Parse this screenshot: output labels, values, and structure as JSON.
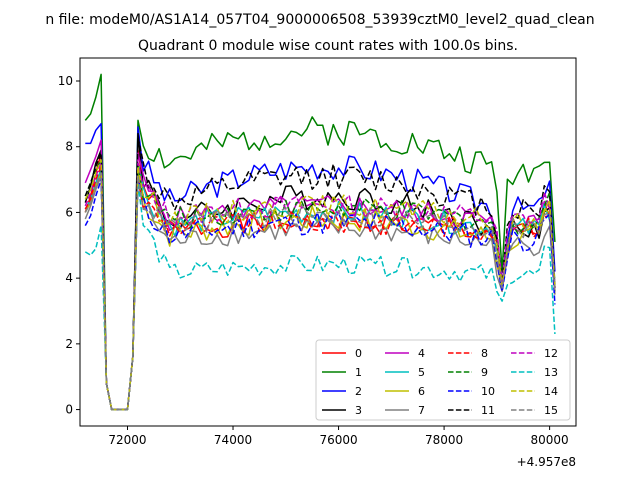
{
  "figure_title": "n file: modeM0/AS1A14_057T04_9000006508_53939cztM0_level2_quad_clean",
  "chart_data": {
    "type": "line",
    "title": "Quadrant 0 module wise count rates with 100.0s bins.",
    "xlabel": "",
    "ylabel": "",
    "x_offset_label": "+4.957e8",
    "xlim": [
      71100,
      80500
    ],
    "ylim": [
      -0.5,
      10.7
    ],
    "x_ticks": [
      72000,
      74000,
      76000,
      78000,
      80000
    ],
    "x_tick_labels": [
      "72000",
      "74000",
      "76000",
      "78000",
      "80000"
    ],
    "y_ticks": [
      0,
      2,
      4,
      6,
      8,
      10
    ],
    "y_tick_labels": [
      "0",
      "2",
      "4",
      "6",
      "8",
      "10"
    ],
    "grid": false,
    "legend_position": "lower-right",
    "legend_columns": 4,
    "x_start": 71200,
    "x_step": 100,
    "gap_values": [
      0.8,
      0.0,
      0.0,
      0.0,
      0.0,
      1.6
    ],
    "series": [
      {
        "name": "0",
        "color": "#ff0000",
        "dashed": false,
        "lead": [
          6.0,
          6.5,
          7.2,
          7.8
        ],
        "base": 5.4,
        "trend": 0.3,
        "spike": 7.9,
        "noise": 0.35,
        "dip": 3.6,
        "end": 3.5
      },
      {
        "name": "1",
        "color": "#008000",
        "dashed": false,
        "lead": [
          8.8,
          9.0,
          9.5,
          10.2
        ],
        "base": 7.3,
        "trend": 1.2,
        "spike": 8.8,
        "noise": 0.45,
        "dip": 4.2,
        "end": 5.1
      },
      {
        "name": "2",
        "color": "#0000ff",
        "dashed": false,
        "lead": [
          8.1,
          8.1,
          8.5,
          8.7
        ],
        "base": 6.1,
        "trend": 1.3,
        "spike": 8.6,
        "noise": 0.4,
        "dip": 3.9,
        "end": 4.2
      },
      {
        "name": "3",
        "color": "#000000",
        "dashed": false,
        "lead": [
          6.3,
          6.8,
          7.5,
          7.9
        ],
        "base": 5.5,
        "trend": 1.0,
        "spike": 8.4,
        "noise": 0.4,
        "dip": 3.8,
        "end": 3.6
      },
      {
        "name": "4",
        "color": "#bf00bf",
        "dashed": false,
        "lead": [
          6.9,
          7.3,
          7.7,
          8.2
        ],
        "base": 5.7,
        "trend": 0.5,
        "spike": 7.8,
        "noise": 0.35,
        "dip": 3.7,
        "end": 3.7
      },
      {
        "name": "5",
        "color": "#00bfbf",
        "dashed": false,
        "lead": [
          6.1,
          6.4,
          6.9,
          7.3
        ],
        "base": 5.5,
        "trend": 0.5,
        "spike": 7.5,
        "noise": 0.35,
        "dip": 3.8,
        "end": 3.6
      },
      {
        "name": "6",
        "color": "#bfbf00",
        "dashed": false,
        "lead": [
          6.0,
          6.3,
          6.8,
          7.2
        ],
        "base": 5.2,
        "trend": 0.6,
        "spike": 7.3,
        "noise": 0.4,
        "dip": 3.7,
        "end": 3.6
      },
      {
        "name": "7",
        "color": "#808080",
        "dashed": false,
        "lead": [
          5.8,
          6.2,
          6.7,
          7.1
        ],
        "base": 5.0,
        "trend": 0.5,
        "spike": 7.1,
        "noise": 0.35,
        "dip": 3.6,
        "end": 3.5
      },
      {
        "name": "8",
        "color": "#ff0000",
        "dashed": true,
        "lead": [
          6.1,
          6.4,
          7.0,
          7.4
        ],
        "base": 5.5,
        "trend": 0.2,
        "spike": 7.0,
        "noise": 0.35,
        "dip": 3.7,
        "end": 3.7
      },
      {
        "name": "9",
        "color": "#008000",
        "dashed": true,
        "lead": [
          6.5,
          6.9,
          7.3,
          7.6
        ],
        "base": 5.7,
        "trend": 0.4,
        "spike": 7.5,
        "noise": 0.35,
        "dip": 3.8,
        "end": 3.8
      },
      {
        "name": "10",
        "color": "#0000ff",
        "dashed": true,
        "lead": [
          5.6,
          5.9,
          6.5,
          7.0
        ],
        "base": 5.2,
        "trend": 0.5,
        "spike": 7.0,
        "noise": 0.4,
        "dip": 3.6,
        "end": 3.2
      },
      {
        "name": "11",
        "color": "#000000",
        "dashed": true,
        "lead": [
          6.5,
          6.9,
          7.4,
          7.8
        ],
        "base": 6.1,
        "trend": 1.0,
        "spike": 8.3,
        "noise": 0.4,
        "dip": 3.9,
        "end": 3.7
      },
      {
        "name": "12",
        "color": "#bf00bf",
        "dashed": true,
        "lead": [
          6.2,
          6.6,
          7.1,
          7.5
        ],
        "base": 5.8,
        "trend": 0.4,
        "spike": 7.5,
        "noise": 0.35,
        "dip": 3.8,
        "end": 3.7
      },
      {
        "name": "13",
        "color": "#00bfbf",
        "dashed": true,
        "lead": [
          4.8,
          4.7,
          4.9,
          5.6
        ],
        "base": 4.1,
        "trend": 0.3,
        "spike": 6.9,
        "noise": 0.3,
        "dip": 3.3,
        "end": 2.3
      },
      {
        "name": "14",
        "color": "#bfbf00",
        "dashed": true,
        "lead": [
          6.4,
          6.7,
          7.2,
          7.6
        ],
        "base": 5.7,
        "trend": 0.5,
        "spike": 7.4,
        "noise": 0.35,
        "dip": 3.8,
        "end": 3.7
      },
      {
        "name": "15",
        "color": "#808080",
        "dashed": true,
        "lead": [
          6.0,
          6.3,
          6.8,
          7.2
        ],
        "base": 5.5,
        "trend": 0.4,
        "spike": 7.1,
        "noise": 0.35,
        "dip": 3.7,
        "end": 3.6
      }
    ]
  }
}
